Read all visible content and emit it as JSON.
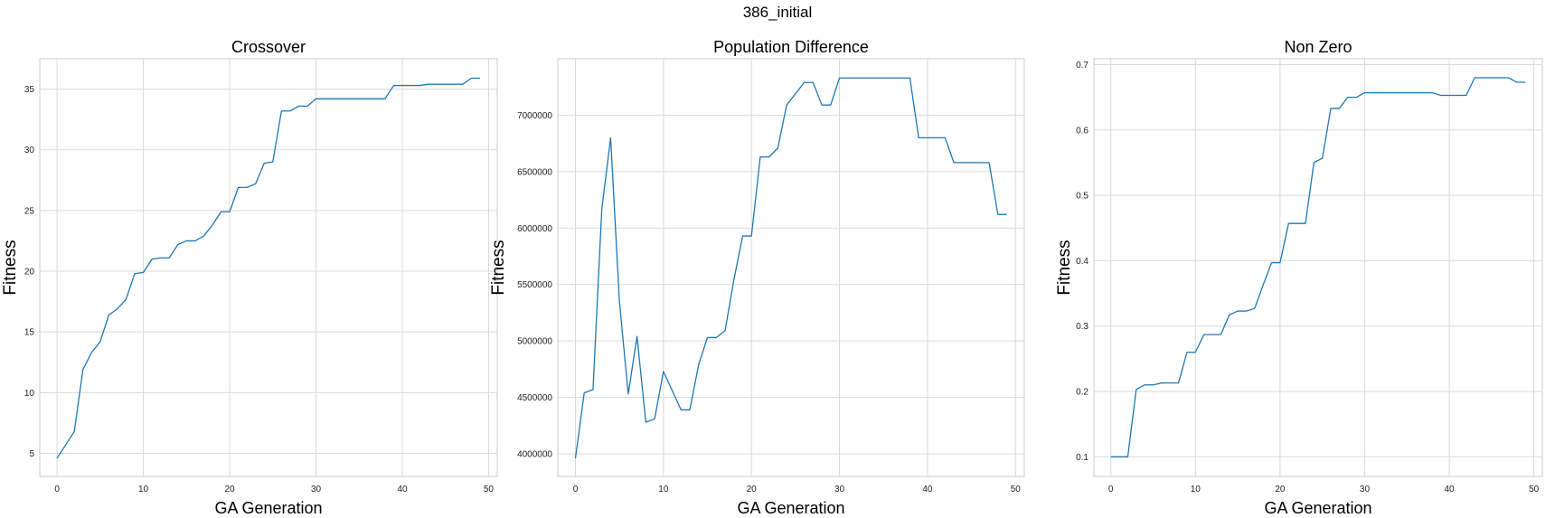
{
  "figure": {
    "suptitle": "386_initial"
  },
  "chart_data": [
    {
      "type": "line",
      "title": "Crossover",
      "xlabel": "GA Generation",
      "ylabel": "Fitness",
      "xlim": [
        -2,
        51
      ],
      "ylim": [
        3.1,
        37.5
      ],
      "xticks": [
        0,
        10,
        20,
        30,
        40,
        50
      ],
      "yticks": [
        5,
        10,
        15,
        20,
        25,
        30,
        35
      ],
      "ytick_labels": [
        "5",
        "10",
        "15",
        "20",
        "25",
        "30",
        "35"
      ],
      "grid": true,
      "color": "#1f77b4",
      "x": [
        0,
        1,
        2,
        3,
        4,
        5,
        6,
        7,
        8,
        9,
        10,
        11,
        12,
        13,
        14,
        15,
        16,
        17,
        18,
        19,
        20,
        21,
        22,
        23,
        24,
        25,
        26,
        27,
        28,
        29,
        30,
        31,
        32,
        33,
        34,
        35,
        36,
        37,
        38,
        39,
        40,
        41,
        42,
        43,
        44,
        45,
        46,
        47,
        48,
        49
      ],
      "y": [
        4.6,
        5.7,
        6.8,
        11.9,
        13.3,
        14.2,
        16.4,
        16.9,
        17.7,
        19.8,
        19.9,
        21.0,
        21.1,
        21.1,
        22.2,
        22.5,
        22.5,
        22.9,
        23.8,
        24.9,
        24.9,
        26.9,
        26.9,
        27.2,
        28.9,
        29.0,
        33.2,
        33.2,
        33.6,
        33.6,
        34.2,
        34.2,
        34.2,
        34.2,
        34.2,
        34.2,
        34.2,
        34.2,
        34.2,
        35.3,
        35.3,
        35.3,
        35.3,
        35.4,
        35.4,
        35.4,
        35.4,
        35.4,
        35.9,
        35.9
      ]
    },
    {
      "type": "line",
      "title": "Population Difference",
      "xlabel": "GA Generation",
      "ylabel": "Fitness",
      "xlim": [
        -2,
        51
      ],
      "ylim": [
        3800000,
        7500000
      ],
      "xticks": [
        0,
        10,
        20,
        30,
        40,
        50
      ],
      "yticks": [
        4000000,
        4500000,
        5000000,
        5500000,
        6000000,
        6500000,
        7000000
      ],
      "ytick_labels": [
        "4000000",
        "4500000",
        "5000000",
        "5500000",
        "6000000",
        "6500000",
        "7000000"
      ],
      "grid": true,
      "color": "#1f77b4",
      "x": [
        0,
        1,
        2,
        3,
        4,
        5,
        6,
        7,
        8,
        9,
        10,
        11,
        12,
        13,
        14,
        15,
        16,
        17,
        18,
        19,
        20,
        21,
        22,
        23,
        24,
        25,
        26,
        27,
        28,
        29,
        30,
        31,
        32,
        33,
        34,
        35,
        36,
        37,
        38,
        39,
        40,
        41,
        42,
        43,
        44,
        45,
        46,
        47,
        48,
        49
      ],
      "y": [
        3960000,
        4540000,
        4570000,
        6170000,
        6800000,
        5350000,
        4530000,
        5040000,
        4280000,
        4310000,
        4730000,
        4560000,
        4390000,
        4390000,
        4790000,
        5030000,
        5030000,
        5090000,
        5540000,
        5930000,
        5930000,
        6630000,
        6630000,
        6710000,
        7090000,
        7190000,
        7290000,
        7290000,
        7090000,
        7090000,
        7330000,
        7330000,
        7330000,
        7330000,
        7330000,
        7330000,
        7330000,
        7330000,
        7330000,
        6800000,
        6800000,
        6800000,
        6800000,
        6580000,
        6580000,
        6580000,
        6580000,
        6580000,
        6120000,
        6120000
      ]
    },
    {
      "type": "line",
      "title": "Non Zero",
      "xlabel": "GA Generation",
      "ylabel": "Fitness",
      "xlim": [
        -2,
        51
      ],
      "ylim": [
        0.07,
        0.709
      ],
      "xticks": [
        0,
        10,
        20,
        30,
        40,
        50
      ],
      "yticks": [
        0.1,
        0.2,
        0.3,
        0.4,
        0.5,
        0.6,
        0.7
      ],
      "ytick_labels": [
        "0.1",
        "0.2",
        "0.3",
        "0.4",
        "0.5",
        "0.6",
        "0.7"
      ],
      "grid": true,
      "color": "#1f77b4",
      "x": [
        0,
        1,
        2,
        3,
        4,
        5,
        6,
        7,
        8,
        9,
        10,
        11,
        12,
        13,
        14,
        15,
        16,
        17,
        18,
        19,
        20,
        21,
        22,
        23,
        24,
        25,
        26,
        27,
        28,
        29,
        30,
        31,
        32,
        33,
        34,
        35,
        36,
        37,
        38,
        39,
        40,
        41,
        42,
        43,
        44,
        45,
        46,
        47,
        48,
        49
      ],
      "y": [
        0.1,
        0.1,
        0.1,
        0.203,
        0.21,
        0.21,
        0.213,
        0.213,
        0.213,
        0.26,
        0.26,
        0.287,
        0.287,
        0.287,
        0.317,
        0.323,
        0.323,
        0.327,
        0.363,
        0.397,
        0.397,
        0.457,
        0.457,
        0.457,
        0.55,
        0.557,
        0.633,
        0.633,
        0.65,
        0.65,
        0.657,
        0.657,
        0.657,
        0.657,
        0.657,
        0.657,
        0.657,
        0.657,
        0.657,
        0.653,
        0.653,
        0.653,
        0.653,
        0.68,
        0.68,
        0.68,
        0.68,
        0.68,
        0.673,
        0.673
      ]
    }
  ]
}
